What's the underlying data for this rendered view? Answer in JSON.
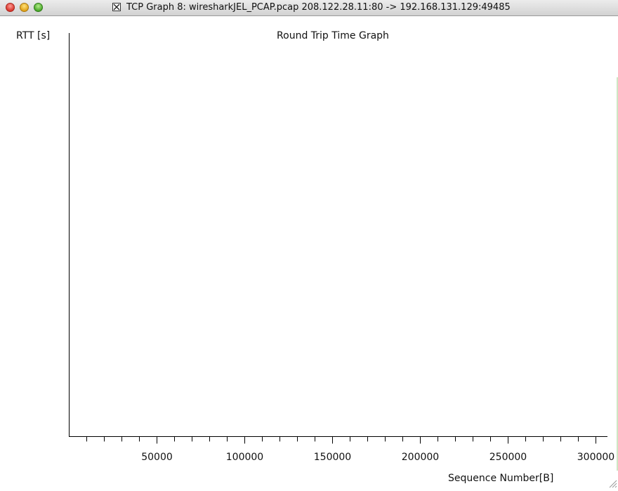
{
  "window": {
    "title": "TCP Graph 8: wiresharkJEL_PCAP.pcap 208.122.28.11:80 -> 192.168.131.129:49485"
  },
  "icons": {
    "close": "close-icon",
    "minimize": "minimize-icon",
    "zoom": "zoom-icon",
    "x11": "x11-app-icon",
    "resize": "resize-grip-icon"
  },
  "chart_data": {
    "type": "scatter",
    "title": "Round Trip Time Graph",
    "ylabel": "RTT [s]",
    "xlabel": "Sequence Number[B]",
    "x_ticks": [
      50000,
      100000,
      150000,
      200000,
      250000,
      300000
    ],
    "x_tick_labels": [
      "50000",
      "100000",
      "150000",
      "200000",
      "250000",
      "300000"
    ],
    "xlim": [
      0,
      300000
    ],
    "points": [],
    "grid": false
  }
}
